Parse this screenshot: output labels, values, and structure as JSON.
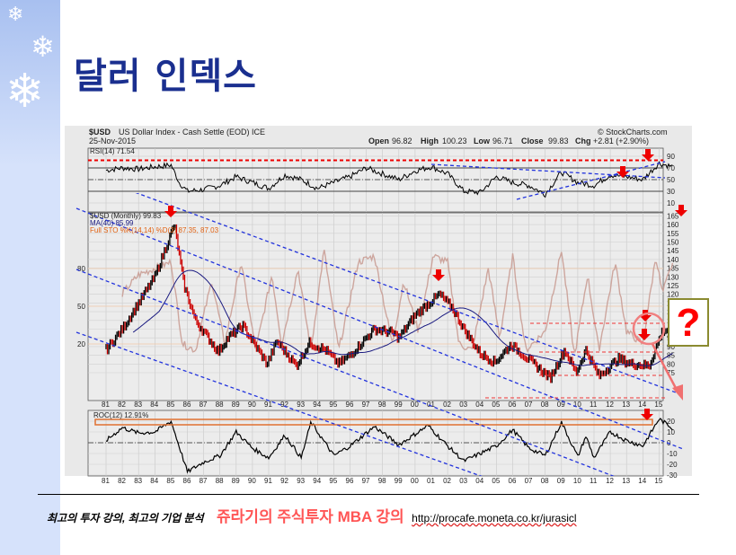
{
  "slide": {
    "title": "달러 인덱스",
    "question_mark": "?",
    "footer_tagline": "최고의 투자 강의, 최고의 기업 분석",
    "footer_course": "쥬라기의 주식투자 MBA 강의",
    "footer_url": "http://procafe.moneta.co.kr/jurasicl"
  },
  "colors": {
    "title": "#1a2f8f",
    "accent_red": "#ff0000",
    "price_up": "#000000",
    "price_down": "#cc0000",
    "ma": "#1a1a80",
    "sto": "#c89a90",
    "trend": "#2233dd"
  },
  "chart_data": {
    "type": "line",
    "header": {
      "symbol": "$USD",
      "name": "US Dollar Index - Cash Settle (EOD) ICE",
      "source": "© StockCharts.com",
      "date": "25-Nov-2015",
      "open_label": "Open",
      "open": "96.82",
      "high_label": "High",
      "high": "100.23",
      "low_label": "Low",
      "low": "96.71",
      "close_label": "Close",
      "close": "99.83",
      "chg_label": "Chg",
      "chg": "+2.81 (+2.90%)"
    },
    "x_ticks": [
      "81",
      "82",
      "83",
      "84",
      "85",
      "86",
      "87",
      "88",
      "89",
      "90",
      "91",
      "92",
      "93",
      "94",
      "95",
      "96",
      "97",
      "98",
      "99",
      "00",
      "01",
      "02",
      "03",
      "04",
      "05",
      "06",
      "07",
      "08",
      "09",
      "10",
      "11",
      "12",
      "13",
      "14",
      "15"
    ],
    "rsi": {
      "label": "RSI(14) 71.54",
      "yticks": [
        "90",
        "70",
        "50",
        "30",
        "10"
      ],
      "ylim": [
        10,
        90
      ],
      "points": [
        [
          1981,
          66
        ],
        [
          1982,
          70
        ],
        [
          1983,
          68
        ],
        [
          1984,
          72
        ],
        [
          1985,
          75
        ],
        [
          1985.5,
          45
        ],
        [
          1986,
          30
        ],
        [
          1987,
          33
        ],
        [
          1988,
          40
        ],
        [
          1989,
          55
        ],
        [
          1990,
          45
        ],
        [
          1991,
          35
        ],
        [
          1992,
          58
        ],
        [
          1993,
          50
        ],
        [
          1994,
          35
        ],
        [
          1995,
          45
        ],
        [
          1996,
          55
        ],
        [
          1997,
          70
        ],
        [
          1998,
          60
        ],
        [
          1999,
          50
        ],
        [
          2000,
          65
        ],
        [
          2001,
          72
        ],
        [
          2002,
          60
        ],
        [
          2003,
          30
        ],
        [
          2004,
          28
        ],
        [
          2005,
          55
        ],
        [
          2006,
          45
        ],
        [
          2007,
          40
        ],
        [
          2008,
          25
        ],
        [
          2009,
          63
        ],
        [
          2010,
          45
        ],
        [
          2011,
          40
        ],
        [
          2012,
          58
        ],
        [
          2013,
          55
        ],
        [
          2014,
          50
        ],
        [
          2015,
          78
        ],
        [
          2015.9,
          71.54
        ]
      ]
    },
    "price": {
      "label": "$USD (Monthly) 99.83",
      "ma_label": "MA(40) 85.99",
      "sto_label": "Full STO %K(14,14) %D(3) 87.35, 87.03",
      "yticks": [
        "165",
        "160",
        "155",
        "150",
        "145",
        "140",
        "135",
        "130",
        "125",
        "120",
        "115",
        "110",
        "105",
        "100",
        "95",
        "90",
        "85",
        "80",
        "75"
      ],
      "sto_yticks": [
        "80",
        "50",
        "20"
      ],
      "ylim": [
        75,
        165
      ],
      "points": [
        [
          1981,
          88
        ],
        [
          1982,
          100
        ],
        [
          1983,
          115
        ],
        [
          1984,
          130
        ],
        [
          1985.2,
          160
        ],
        [
          1985.8,
          125
        ],
        [
          1986.5,
          105
        ],
        [
          1987.9,
          87
        ],
        [
          1988.5,
          95
        ],
        [
          1989.4,
          102
        ],
        [
          1990.9,
          80
        ],
        [
          1991.5,
          93
        ],
        [
          1992.7,
          79
        ],
        [
          1993.5,
          92
        ],
        [
          1994.5,
          88
        ],
        [
          1995.3,
          80
        ],
        [
          1996,
          85
        ],
        [
          1997.5,
          100
        ],
        [
          1998.6,
          98
        ],
        [
          1999,
          95
        ],
        [
          2000,
          108
        ],
        [
          2001.5,
          120
        ],
        [
          2002.3,
          112
        ],
        [
          2003,
          100
        ],
        [
          2004,
          86
        ],
        [
          2004.9,
          81
        ],
        [
          2005.9,
          91
        ],
        [
          2006.8,
          84
        ],
        [
          2008.3,
          72
        ],
        [
          2009.2,
          88
        ],
        [
          2009.9,
          75
        ],
        [
          2010.5,
          88
        ],
        [
          2011.3,
          73
        ],
        [
          2012.5,
          83
        ],
        [
          2013.3,
          80
        ],
        [
          2014.4,
          79
        ],
        [
          2015.2,
          99
        ],
        [
          2015.9,
          99.83
        ]
      ],
      "sto_points": [
        [
          1982,
          60
        ],
        [
          1983,
          75
        ],
        [
          1984,
          80
        ],
        [
          1985,
          85
        ],
        [
          1985.7,
          20
        ],
        [
          1986.5,
          15
        ],
        [
          1987.5,
          70
        ],
        [
          1988.3,
          20
        ],
        [
          1989.3,
          85
        ],
        [
          1990.2,
          15
        ],
        [
          1991.2,
          75
        ],
        [
          1991.8,
          20
        ],
        [
          1992.8,
          80
        ],
        [
          1993.6,
          15
        ],
        [
          1994.4,
          95
        ],
        [
          1995.3,
          15
        ],
        [
          1996.5,
          85
        ],
        [
          1997.5,
          90
        ],
        [
          1998.6,
          20
        ],
        [
          1999.3,
          70
        ],
        [
          2000.2,
          30
        ],
        [
          2001.1,
          90
        ],
        [
          2002,
          85
        ],
        [
          2002.7,
          20
        ],
        [
          2003.5,
          15
        ],
        [
          2004.5,
          80
        ],
        [
          2005.2,
          25
        ],
        [
          2006,
          90
        ],
        [
          2006.8,
          15
        ],
        [
          2008,
          30
        ],
        [
          2009,
          95
        ],
        [
          2009.8,
          10
        ],
        [
          2010.6,
          75
        ],
        [
          2011.3,
          15
        ],
        [
          2012.3,
          85
        ],
        [
          2013,
          30
        ],
        [
          2014,
          20
        ],
        [
          2014.8,
          90
        ],
        [
          2015.2,
          60
        ],
        [
          2015.9,
          87
        ]
      ]
    },
    "roc": {
      "label": "ROC(12) 12.91%",
      "yticks": [
        "20",
        "10",
        "0",
        "-10",
        "-20",
        "-30"
      ],
      "ylim": [
        -30,
        25
      ],
      "points": [
        [
          1981,
          2
        ],
        [
          1982,
          14
        ],
        [
          1983,
          9
        ],
        [
          1984,
          10
        ],
        [
          1985,
          20
        ],
        [
          1986,
          -27
        ],
        [
          1987,
          -18
        ],
        [
          1988,
          -12
        ],
        [
          1989,
          10
        ],
        [
          1990,
          -5
        ],
        [
          1991,
          -14
        ],
        [
          1992,
          7
        ],
        [
          1993,
          -14
        ],
        [
          1993.6,
          19
        ],
        [
          1995,
          -12
        ],
        [
          1996,
          -3
        ],
        [
          1997.5,
          15
        ],
        [
          1999,
          -2
        ],
        [
          2000.8,
          16
        ],
        [
          2002,
          -3
        ],
        [
          2003,
          -17
        ],
        [
          2004,
          -10
        ],
        [
          2005,
          -3
        ],
        [
          2006,
          12
        ],
        [
          2007,
          -5
        ],
        [
          2008,
          -12
        ],
        [
          2009,
          19
        ],
        [
          2010,
          -13
        ],
        [
          2010.5,
          6
        ],
        [
          2011,
          -14
        ],
        [
          2012,
          10
        ],
        [
          2013,
          2
        ],
        [
          2014,
          -3
        ],
        [
          2015,
          22
        ],
        [
          2015.9,
          12.91
        ]
      ]
    }
  }
}
